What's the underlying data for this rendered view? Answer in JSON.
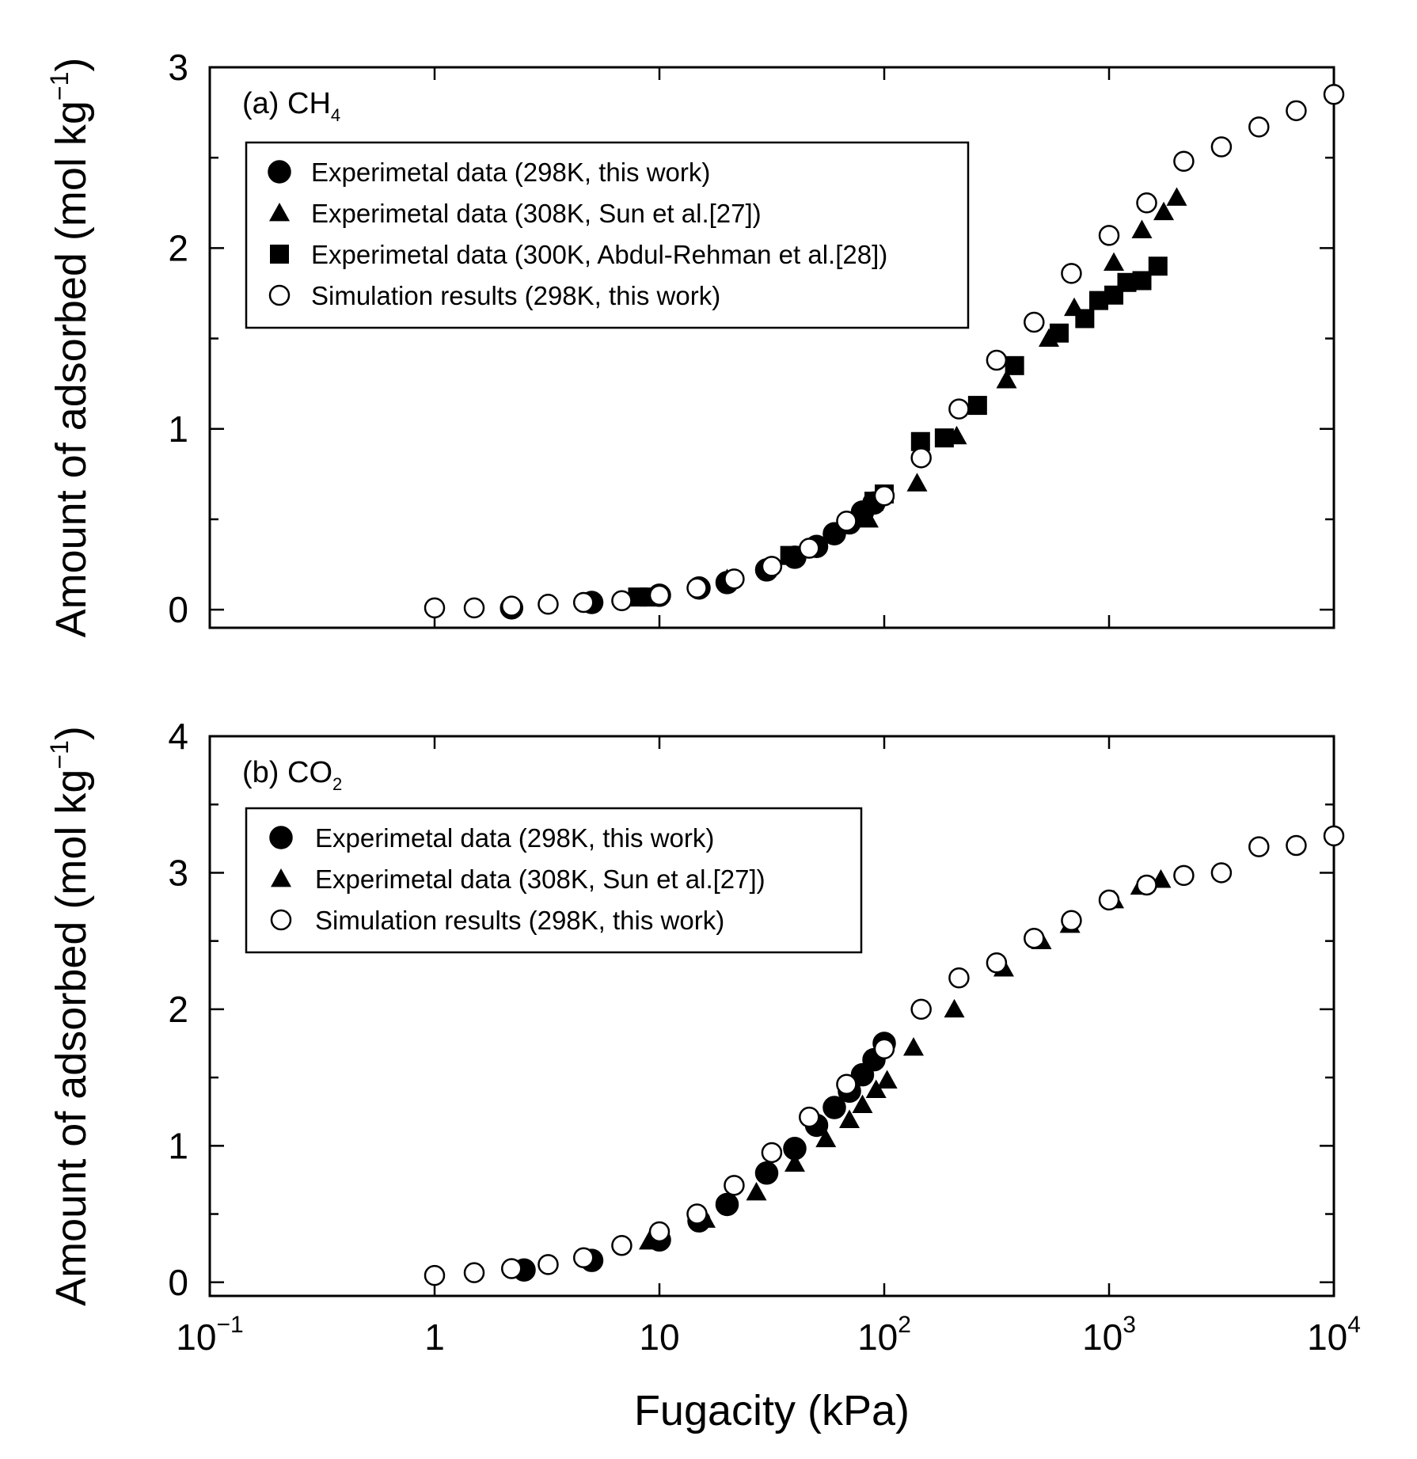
{
  "chart_data": [
    {
      "type": "scatter",
      "panel_label": "(a) CH",
      "panel_sub": "4",
      "xscale": "log",
      "xlim": [
        0.1,
        10000
      ],
      "ylim": [
        -0.1,
        3
      ],
      "yticks": [
        0,
        1,
        2,
        3
      ],
      "ylabel_main": "Amount of adsorbed (mol kg",
      "ylabel_sup": "−1",
      "ylabel_close": ")",
      "legend_position": "upper-left",
      "series": [
        {
          "name": "Experimetal data (298K, this work)",
          "marker": "filled-circle",
          "x": [
            2.2,
            5,
            10,
            15,
            20,
            30,
            40,
            50,
            60,
            70,
            80,
            90
          ],
          "y": [
            0.01,
            0.04,
            0.08,
            0.12,
            0.15,
            0.22,
            0.29,
            0.35,
            0.42,
            0.48,
            0.54,
            0.59
          ]
        },
        {
          "name": "Experimetal data (308K, Sun et al.[27])",
          "marker": "filled-triangle",
          "x": [
            20,
            85,
            140,
            210,
            350,
            540,
            700,
            1050,
            1400,
            1750,
            2000
          ],
          "y": [
            0.17,
            0.5,
            0.7,
            0.96,
            1.27,
            1.5,
            1.67,
            1.92,
            2.1,
            2.2,
            2.28
          ],
          "extra_marker_note": ""
        },
        {
          "name": "Experimetal data (300K, Abdul-Rehman et al.[28])",
          "marker": "filled-square",
          "x": [
            8,
            9,
            38,
            90,
            100,
            145,
            185,
            260,
            380,
            600,
            780,
            900,
            1050,
            1200,
            1400,
            1650
          ],
          "y": [
            0.07,
            0.07,
            0.3,
            0.6,
            0.64,
            0.93,
            0.95,
            1.13,
            1.35,
            1.53,
            1.61,
            1.71,
            1.74,
            1.81,
            1.82,
            1.9
          ]
        },
        {
          "name": "Simulation results (298K, this work)",
          "marker": "open-circle",
          "x": [
            1,
            1.5,
            2.2,
            3.2,
            4.6,
            6.8,
            10,
            14.7,
            21.5,
            31.6,
            46.4,
            68,
            100,
            146,
            215,
            316,
            464,
            680,
            1000,
            1470,
            2150,
            3160,
            4640,
            6800,
            10000
          ],
          "y": [
            0.01,
            0.01,
            0.02,
            0.03,
            0.04,
            0.05,
            0.08,
            0.12,
            0.17,
            0.24,
            0.34,
            0.49,
            0.63,
            0.84,
            1.11,
            1.38,
            1.59,
            1.86,
            2.07,
            2.25,
            2.48,
            2.56,
            2.67,
            2.76,
            2.85
          ]
        }
      ]
    },
    {
      "type": "scatter",
      "panel_label": "(b) CO",
      "panel_sub": "2",
      "xscale": "log",
      "xlim": [
        0.1,
        10000
      ],
      "ylim": [
        -0.1,
        4
      ],
      "yticks": [
        0,
        1,
        2,
        3,
        4
      ],
      "ylabel_main": "Amount of adsorbed (mol kg",
      "ylabel_sup": "−1",
      "ylabel_close": ")",
      "xlabel": "Fugacity (kPa)",
      "xtick_labels": [
        {
          "value": 0.1,
          "base": "10",
          "exp": "−1"
        },
        {
          "value": 1,
          "base": "1",
          "exp": ""
        },
        {
          "value": 10,
          "base": "10",
          "exp": ""
        },
        {
          "value": 100,
          "base": "10",
          "exp": "2"
        },
        {
          "value": 1000,
          "base": "10",
          "exp": "3"
        },
        {
          "value": 10000,
          "base": "10",
          "exp": "4"
        }
      ],
      "legend_position": "upper-left",
      "series": [
        {
          "name": "Experimetal data (298K, this work)",
          "marker": "filled-circle",
          "x": [
            2.5,
            5,
            10,
            15,
            20,
            30,
            40,
            50,
            60,
            70,
            80,
            90,
            100
          ],
          "y": [
            0.09,
            0.16,
            0.31,
            0.45,
            0.57,
            0.8,
            0.98,
            1.15,
            1.28,
            1.4,
            1.52,
            1.63,
            1.75
          ]
        },
        {
          "name": "Experimetal data (308K, Sun et al.[27])",
          "marker": "filled-triangle",
          "x": [
            9,
            16,
            27,
            40,
            55,
            70,
            80,
            92,
            103,
            135,
            205,
            340,
            500,
            670,
            1050,
            1380,
            1700
          ],
          "y": [
            0.3,
            0.46,
            0.66,
            0.87,
            1.05,
            1.19,
            1.3,
            1.41,
            1.48,
            1.72,
            2.0,
            2.3,
            2.5,
            2.62,
            2.8,
            2.9,
            2.95
          ]
        },
        {
          "name": "Simulation results (298K, this work)",
          "marker": "open-circle",
          "x": [
            1,
            1.5,
            2.2,
            3.2,
            4.6,
            6.8,
            10,
            14.7,
            21.5,
            31.6,
            46.4,
            68,
            100,
            146,
            215,
            316,
            464,
            680,
            1000,
            1470,
            2150,
            3160,
            4640,
            6800,
            10000
          ],
          "y": [
            0.05,
            0.07,
            0.1,
            0.13,
            0.18,
            0.27,
            0.37,
            0.5,
            0.71,
            0.95,
            1.21,
            1.45,
            1.71,
            2.0,
            2.23,
            2.34,
            2.52,
            2.65,
            2.8,
            2.91,
            2.98,
            3.0,
            3.19,
            3.2,
            3.27
          ]
        }
      ]
    }
  ]
}
